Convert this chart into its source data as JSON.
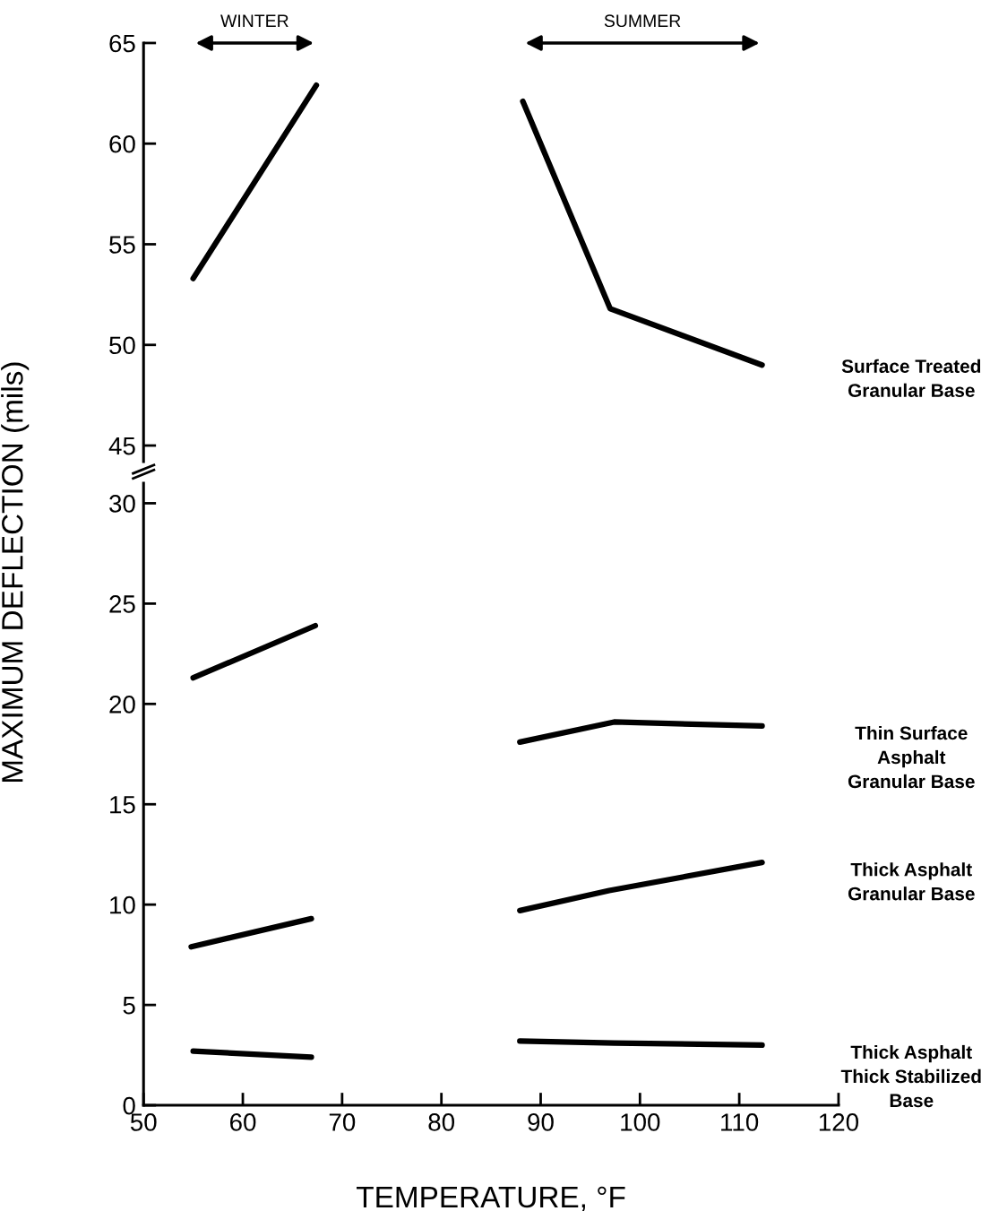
{
  "chart_data": [
    {
      "type": "line",
      "ylim": [
        44.2,
        65
      ],
      "yticks": [
        45,
        50,
        55,
        60,
        65
      ],
      "xlim": [
        50,
        120
      ],
      "tick_labels": "y",
      "grid": false,
      "legend": false,
      "annotations": [
        "WINTER",
        "SUMMER"
      ],
      "series": [
        {
          "name": "Surface Treated\nGranular Base",
          "color": "#000000",
          "x": [
            55,
            67.4,
            77,
            88.2,
            97.0,
            112.3
          ],
          "values": [
            53.3,
            62.9,
            null,
            62.1,
            51.8,
            49.0
          ]
        }
      ]
    },
    {
      "type": "line",
      "ylim": [
        0,
        31
      ],
      "yticks": [
        0,
        5,
        10,
        15,
        20,
        25,
        30
      ],
      "xlim": [
        50,
        120
      ],
      "xticks": [
        50,
        60,
        70,
        80,
        90,
        100,
        110,
        120
      ],
      "xlabel": "TEMPERATURE, °F",
      "ylabel": "MAXIMUM DEFLECTION (mils)",
      "grid": false,
      "legend": false,
      "series": [
        {
          "name": "Thin Surface\nAsphalt\nGranular Base",
          "color": "#000000",
          "x": [
            55,
            67.3,
            77,
            87.9,
            97.4,
            112.3
          ],
          "values": [
            21.3,
            23.9,
            null,
            18.1,
            19.1,
            18.9
          ]
        },
        {
          "name": "Thick Asphalt\nGranular Base",
          "color": "#000000",
          "x": [
            54.8,
            66.9,
            77,
            87.9,
            96.9,
            112.3
          ],
          "values": [
            7.9,
            9.3,
            null,
            9.7,
            10.7,
            12.1
          ]
        },
        {
          "name": "Thick Asphalt\nThick Stabilized\nBase",
          "color": "#000000",
          "x": [
            55,
            66.9,
            77,
            87.9,
            97.4,
            112.3
          ],
          "values": [
            2.7,
            2.4,
            null,
            3.2,
            3.1,
            3.0
          ]
        }
      ]
    }
  ]
}
